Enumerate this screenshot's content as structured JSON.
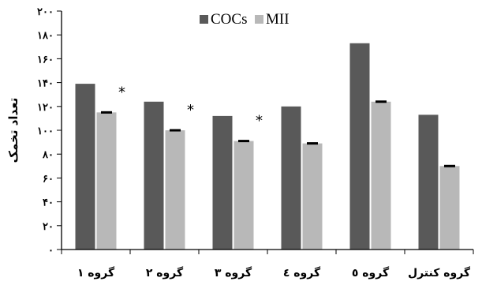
{
  "chart_data": {
    "type": "bar",
    "categories": [
      "گروه ۱",
      "گروه ۲",
      "گروه ۳",
      "گروه ٤",
      "گروه ٥",
      "گروه کنترل"
    ],
    "series": [
      {
        "name": "COCs",
        "color": "#595959",
        "values": [
          139,
          124,
          112,
          120,
          173,
          113
        ]
      },
      {
        "name": "MII",
        "color": "#b8b8b8",
        "values": [
          115,
          100,
          91,
          89,
          124,
          70
        ]
      }
    ],
    "error_bars": [
      [
        0,
        0,
        0,
        0,
        0,
        0
      ],
      [
        1,
        1,
        1,
        1,
        1,
        1
      ]
    ],
    "annotations": [
      {
        "category_index": 0,
        "text": "*"
      },
      {
        "category_index": 1,
        "text": "*"
      },
      {
        "category_index": 2,
        "text": "*"
      }
    ],
    "ylabel": "تعداد تخمک",
    "xlabel": "",
    "title": "",
    "ylim": [
      0,
      200
    ],
    "yticks": [
      0,
      20,
      40,
      60,
      80,
      100,
      120,
      140,
      160,
      180,
      200
    ],
    "ytick_labels": [
      "۰",
      "۲۰",
      "۴۰",
      "۶۰",
      "۸۰",
      "۱۰۰",
      "۱۲۰",
      "۱۴۰",
      "۱۶۰",
      "۱۸۰",
      "۲۰۰"
    ],
    "legend_position": "top-center",
    "grid": false
  }
}
